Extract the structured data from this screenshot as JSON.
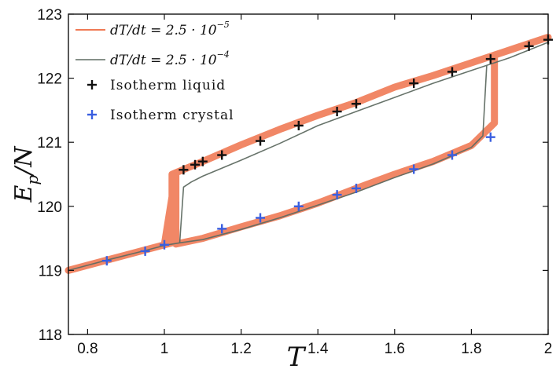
{
  "chart_data": {
    "type": "line",
    "xlabel": "T",
    "ylabel": "E_p/N",
    "xlim": [
      0.75,
      2.0
    ],
    "ylim": [
      118,
      123
    ],
    "x_ticks": [
      "0.8",
      "1",
      "1.2",
      "1.4",
      "1.6",
      "1.8",
      "2"
    ],
    "x_tick_values": [
      0.8,
      1.0,
      1.2,
      1.4,
      1.6,
      1.8,
      2.0
    ],
    "y_ticks": [
      "118",
      "119",
      "120",
      "121",
      "122",
      "123"
    ],
    "y_tick_values": [
      118,
      119,
      120,
      121,
      122,
      123
    ],
    "legend_placement": "top-left",
    "colors": {
      "slow": "#f07a55",
      "fast": "#5f6b62",
      "liquid": "#111111",
      "crystal": "#3a5fe0"
    },
    "series": [
      {
        "name": "dT/dt = 2.5 · 10^-5",
        "legend_base": "dT/dt = 2.5 · 10",
        "legend_exp": "−5",
        "kind": "line",
        "x": [
          0.75,
          0.85,
          0.95,
          1.0,
          1.02,
          1.02,
          1.1,
          1.2,
          1.3,
          1.4,
          1.5,
          1.6,
          1.7,
          1.8,
          1.9,
          2.0,
          2.0,
          1.9,
          1.86,
          1.86,
          1.8,
          1.7,
          1.6,
          1.5,
          1.4,
          1.3,
          1.2,
          1.1,
          1.03,
          1.03,
          1.0,
          0.9,
          0.8,
          0.75
        ],
        "y": [
          119.0,
          119.16,
          119.32,
          119.4,
          119.43,
          120.5,
          120.7,
          120.96,
          121.2,
          121.42,
          121.62,
          121.86,
          122.04,
          122.24,
          122.44,
          122.64,
          122.64,
          122.44,
          122.36,
          121.3,
          120.95,
          120.7,
          120.5,
          120.28,
          120.05,
          119.85,
          119.68,
          119.5,
          119.41,
          120.52,
          119.4,
          119.24,
          119.08,
          119.0
        ]
      },
      {
        "name": "dT/dt = 2.5 · 10^-4",
        "legend_base": "dT/dt = 2.5 · 10",
        "legend_exp": "−4",
        "kind": "line",
        "x": [
          0.75,
          0.85,
          0.95,
          1.0,
          1.04,
          1.05,
          1.07,
          1.1,
          1.2,
          1.3,
          1.4,
          1.5,
          1.6,
          1.7,
          1.8,
          1.9,
          2.0,
          2.0,
          1.9,
          1.84,
          1.83,
          1.8,
          1.7,
          1.6,
          1.5,
          1.4,
          1.3,
          1.2,
          1.1,
          1.04
        ],
        "y": [
          119.0,
          119.16,
          119.31,
          119.39,
          119.43,
          120.3,
          120.38,
          120.47,
          120.72,
          120.98,
          121.26,
          121.48,
          121.7,
          121.92,
          122.12,
          122.32,
          122.56,
          122.56,
          122.32,
          122.2,
          121.1,
          120.92,
          120.66,
          120.45,
          120.22,
          120.02,
          119.82,
          119.64,
          119.48,
          119.43
        ]
      },
      {
        "name": "Isotherm liquid",
        "kind": "marker",
        "x": [
          1.05,
          1.08,
          1.1,
          1.15,
          1.25,
          1.35,
          1.45,
          1.5,
          1.65,
          1.75,
          1.85,
          1.95,
          2.0
        ],
        "y": [
          120.57,
          120.65,
          120.7,
          120.8,
          121.02,
          121.26,
          121.48,
          121.6,
          121.92,
          122.1,
          122.3,
          122.5,
          122.6
        ]
      },
      {
        "name": "Isotherm crystal",
        "kind": "marker",
        "x": [
          0.85,
          0.95,
          1.0,
          1.15,
          1.25,
          1.35,
          1.45,
          1.5,
          1.65,
          1.75,
          1.85
        ],
        "y": [
          119.15,
          119.3,
          119.4,
          119.65,
          119.82,
          120.0,
          120.18,
          120.28,
          120.58,
          120.8,
          121.08
        ]
      }
    ]
  }
}
